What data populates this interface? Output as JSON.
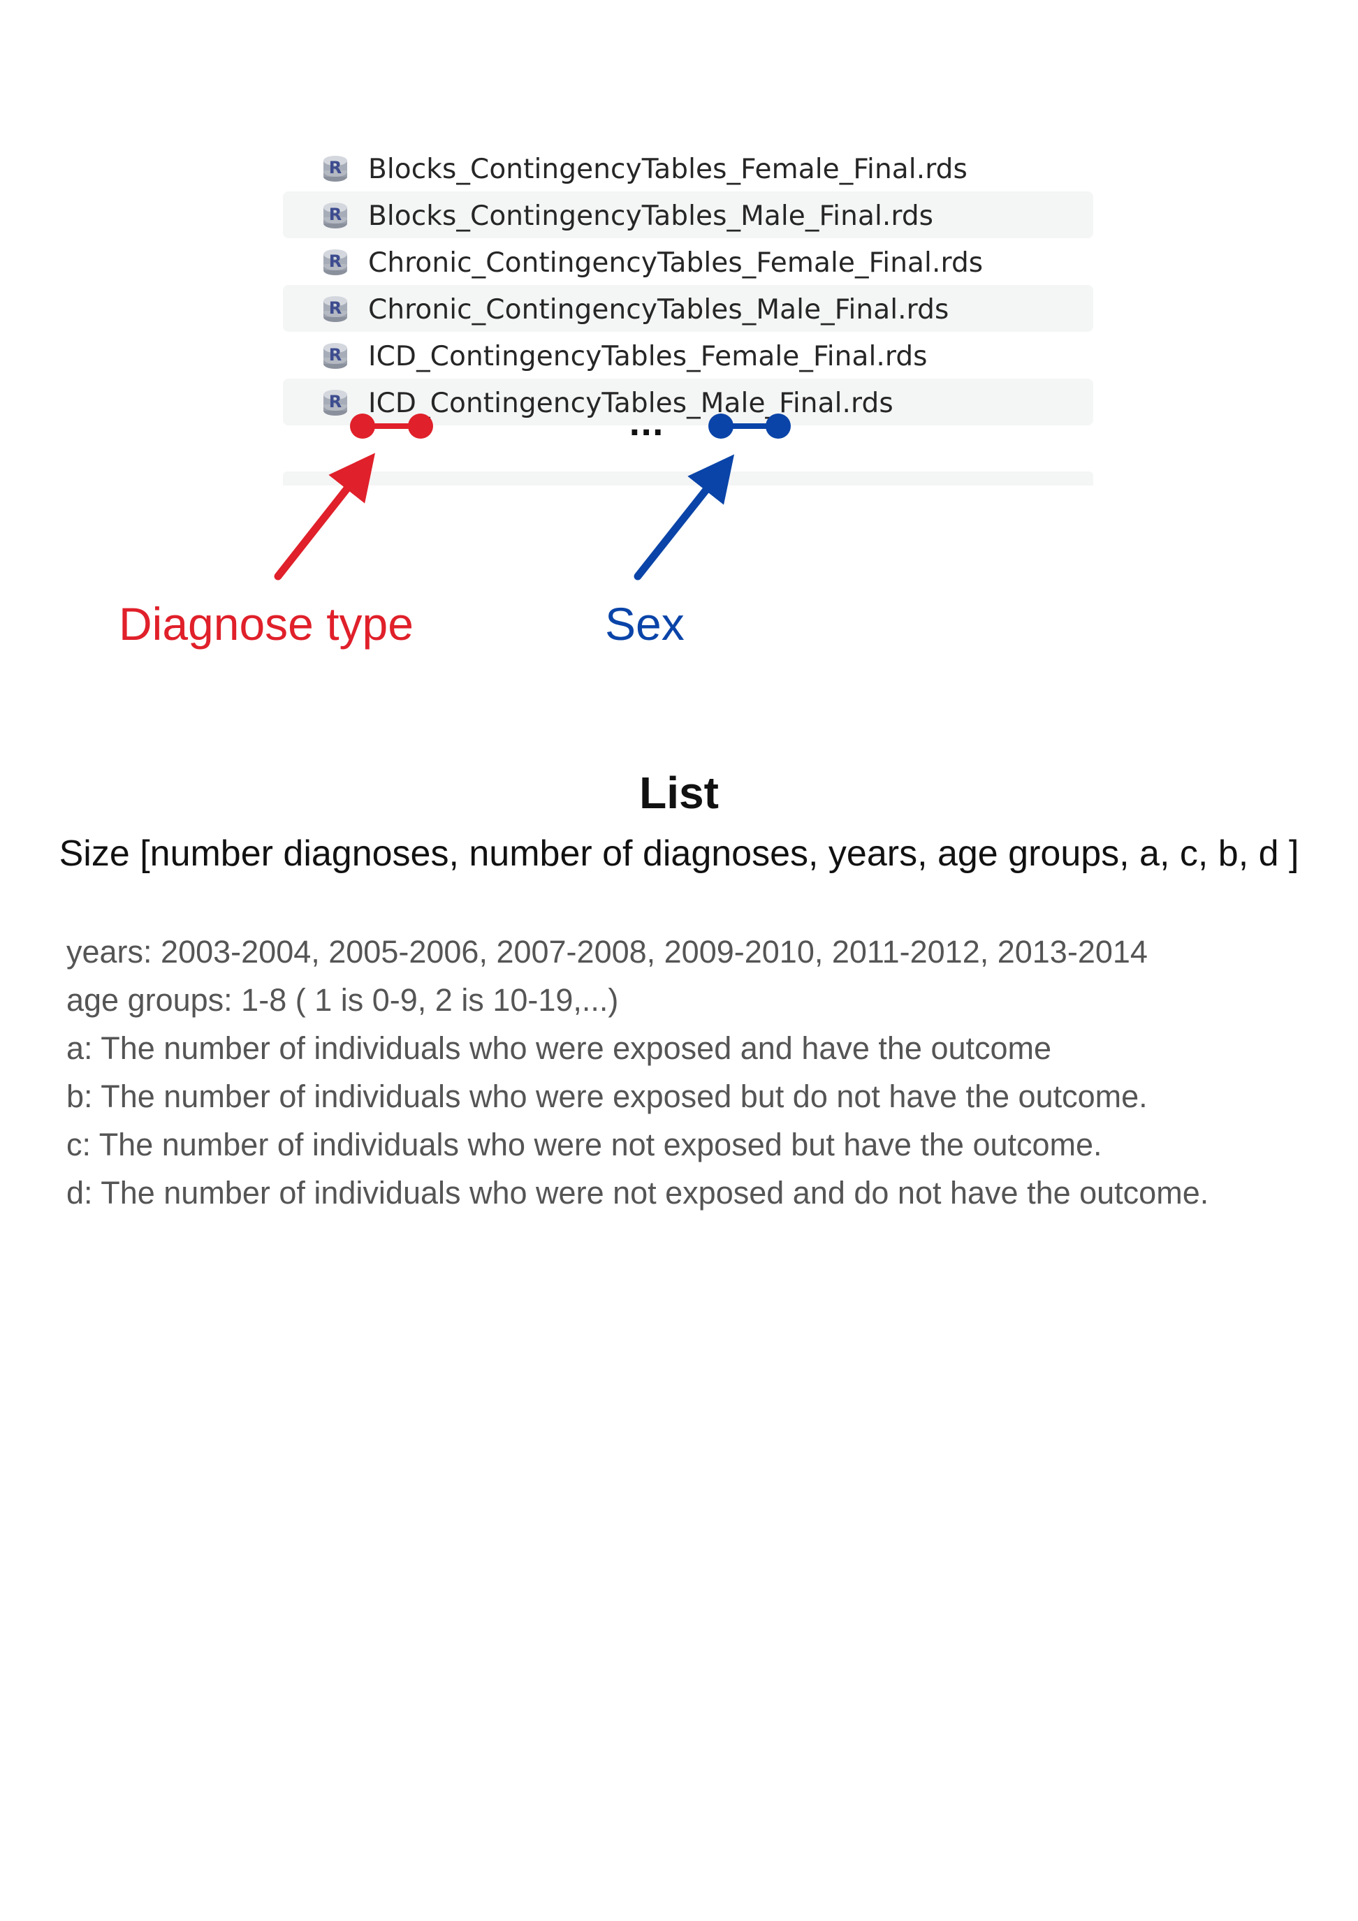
{
  "files": [
    {
      "name": "Blocks_ContingencyTables_Female_Final.rds",
      "icon": "r-database-icon"
    },
    {
      "name": "Blocks_ContingencyTables_Male_Final.rds",
      "icon": "r-database-icon"
    },
    {
      "name": "Chronic_ContingencyTables_Female_Final.rds",
      "icon": "r-database-icon"
    },
    {
      "name": "Chronic_ContingencyTables_Male_Final.rds",
      "icon": "r-database-icon"
    },
    {
      "name": "ICD_ContingencyTables_Female_Final.rds",
      "icon": "r-database-icon"
    },
    {
      "name": "ICD_ContingencyTables_Male_Final.rds",
      "icon": "r-database-icon"
    }
  ],
  "ellipsis": "...",
  "annotations": {
    "diagnose_type": {
      "label": "Diagnose type",
      "color": "#e0202a"
    },
    "sex": {
      "label": "Sex",
      "color": "#0a44a8"
    }
  },
  "list": {
    "title": "List",
    "size": "Size [number diagnoses, number of diagnoses, years, age groups, a, c, b, d ]",
    "definitions": [
      "years: 2003-2004, 2005-2006, 2007-2008, 2009-2010, 2011-2012, 2013-2014",
      "age groups: 1-8 ( 1 is 0-9, 2 is 10-19,...)",
      "a: The number of individuals who were exposed and have the outcome",
      "b: The number of individuals who were exposed but do not have the outcome.",
      "c: The number of individuals who were not exposed but have the outcome.",
      "d: The number of individuals who were not exposed and do not have the outcome."
    ]
  }
}
